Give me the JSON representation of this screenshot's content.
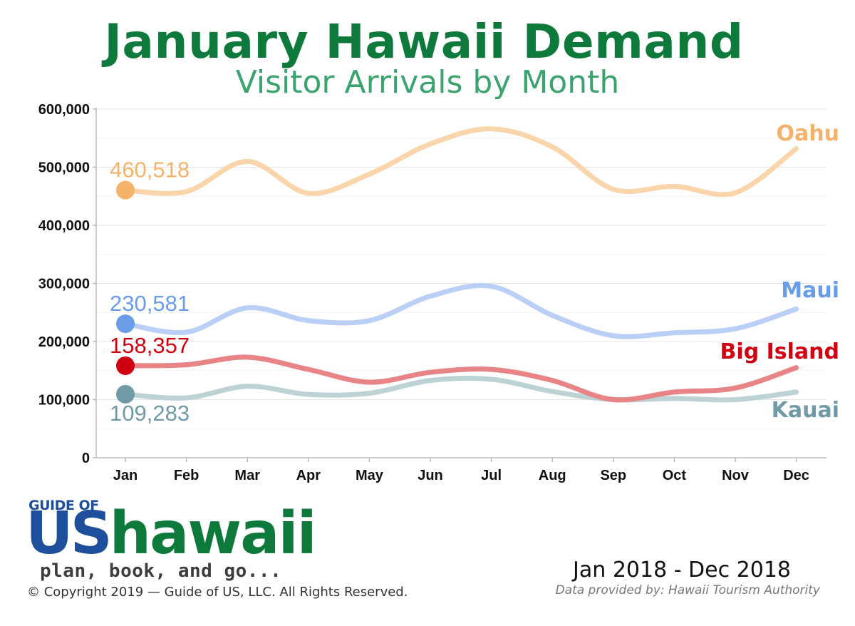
{
  "header": {
    "title": "January Hawaii Demand",
    "subtitle": "Visitor Arrivals by Month"
  },
  "chart_data": {
    "type": "line",
    "title": "January Hawaii Demand",
    "subtitle": "Visitor Arrivals by Month",
    "xlabel": "",
    "ylabel": "",
    "categories": [
      "Jan",
      "Feb",
      "Mar",
      "Apr",
      "May",
      "Jun",
      "Jul",
      "Aug",
      "Sep",
      "Oct",
      "Nov",
      "Dec"
    ],
    "yticks": [
      "0",
      "100,000",
      "200,000",
      "300,000",
      "400,000",
      "500,000",
      "600,000"
    ],
    "ylim": [
      0,
      600000
    ],
    "grid": true,
    "series": [
      {
        "name": "Oahu",
        "color": "#f5b26b",
        "line_color": "#fad4aa",
        "values": [
          460518,
          458000,
          510000,
          455000,
          488000,
          540000,
          566000,
          535000,
          462000,
          467000,
          456000,
          532000
        ],
        "highlight_label": "460,518",
        "highlight_label_position": "above"
      },
      {
        "name": "Maui",
        "color": "#6b9ce8",
        "line_color": "#b9cff5",
        "values": [
          230581,
          216000,
          258000,
          236000,
          236000,
          278000,
          295000,
          245000,
          210000,
          215000,
          222000,
          256000
        ],
        "highlight_label": "230,581",
        "highlight_label_position": "above"
      },
      {
        "name": "Big Island",
        "color": "#d10010",
        "line_color": "#e88386",
        "values": [
          158357,
          160000,
          173000,
          152000,
          130000,
          147000,
          152000,
          133000,
          100000,
          113000,
          120000,
          155000
        ],
        "highlight_label": "158,357",
        "highlight_label_position": "above"
      },
      {
        "name": "Kauai",
        "color": "#6f9aa6",
        "line_color": "#bcd2d5",
        "values": [
          109283,
          103000,
          123000,
          109000,
          111000,
          133000,
          135000,
          114000,
          100000,
          102000,
          100000,
          113000
        ],
        "highlight_label": "109,283",
        "highlight_label_position": "below"
      }
    ]
  },
  "logo": {
    "small": "GUIDE OF",
    "us": "US",
    "hawaii": "hawaii",
    "tagline": "plan, book, and go..."
  },
  "footer": {
    "copyright": "© Copyright 2019 — Guide of US, LLC. All Rights Reserved.",
    "period": "Jan 2018 - Dec 2018",
    "source": "Data provided by: Hawaii Tourism Authority"
  }
}
